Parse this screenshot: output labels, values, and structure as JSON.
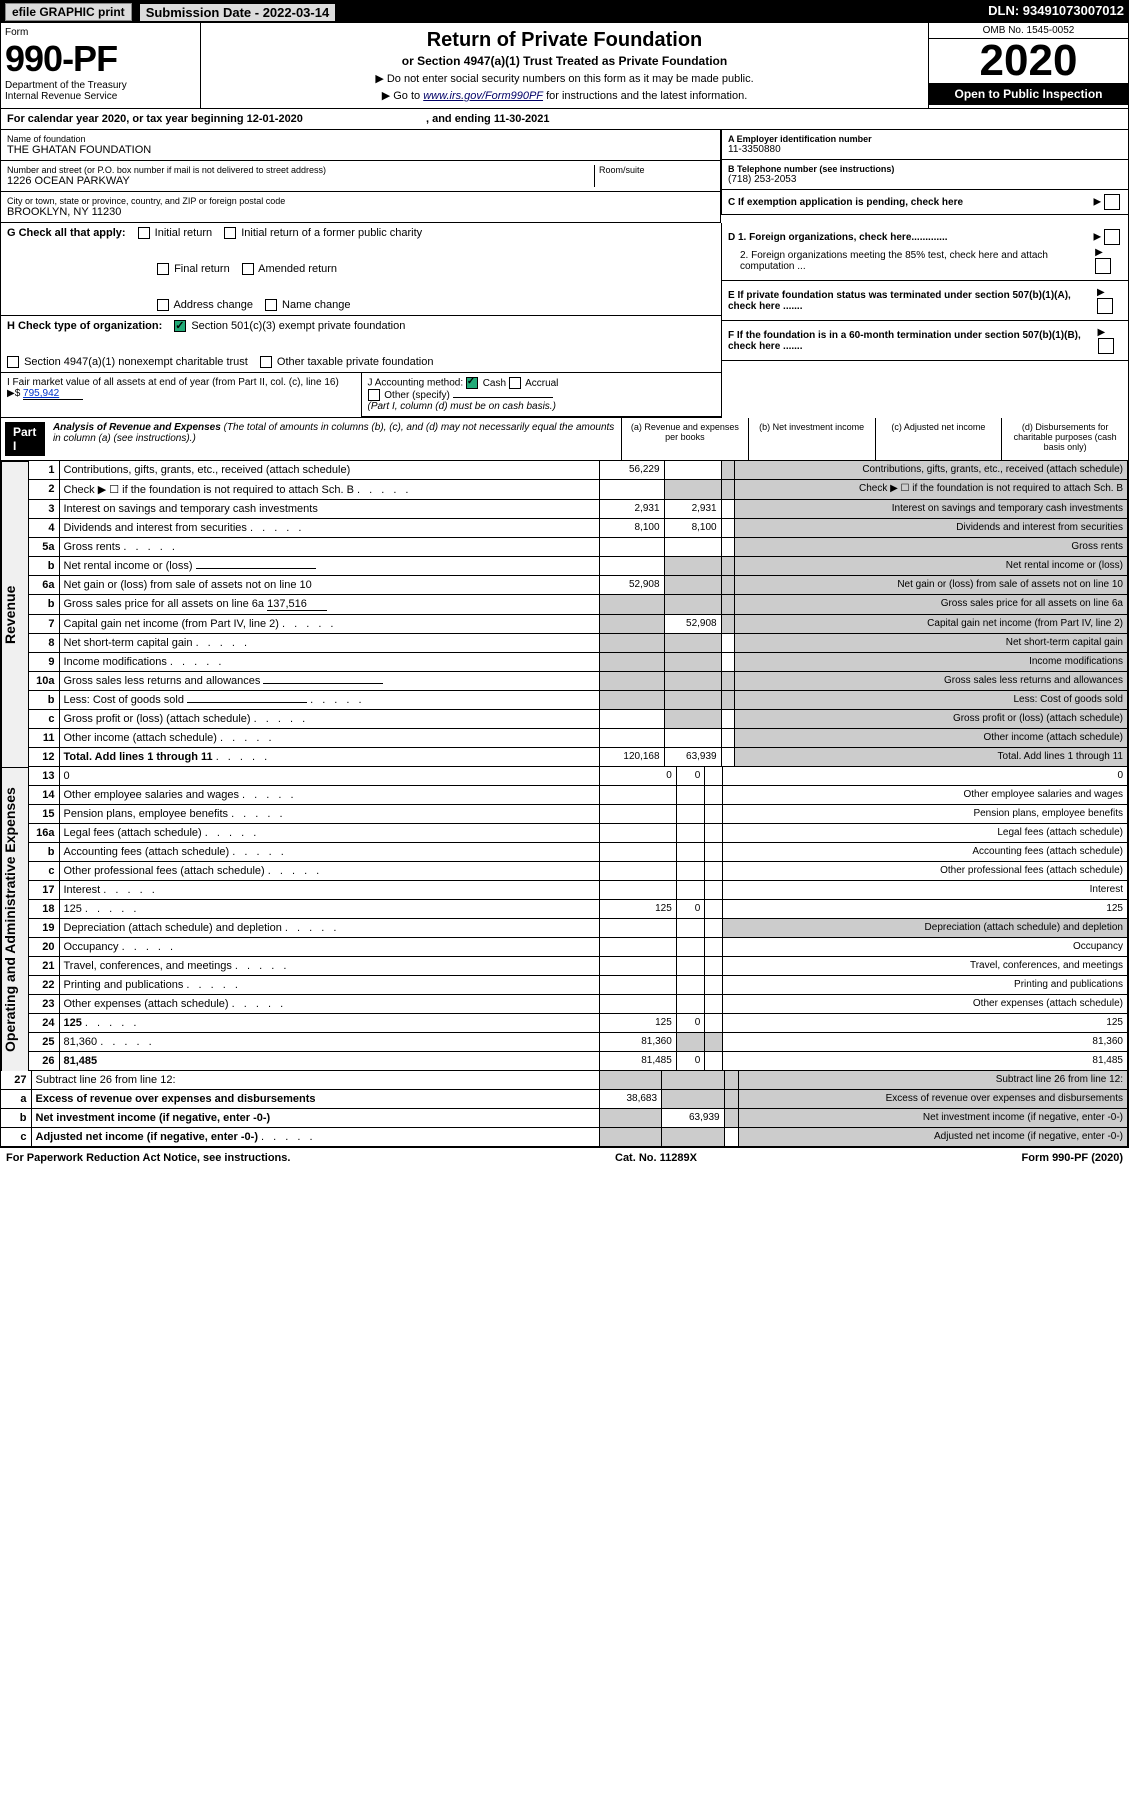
{
  "top_bar": {
    "efile": "efile GRAPHIC print",
    "sub_label": "Submission Date - 2022-03-14",
    "dln": "DLN: 93491073007012"
  },
  "header": {
    "form_label": "Form",
    "form_num": "990-PF",
    "dept": "Department of the Treasury",
    "irs": "Internal Revenue Service",
    "title": "Return of Private Foundation",
    "subtitle": "or Section 4947(a)(1) Trust Treated as Private Foundation",
    "note1": "▶ Do not enter social security numbers on this form as it may be made public.",
    "note2_pre": "▶ Go to ",
    "note2_link": "www.irs.gov/Form990PF",
    "note2_post": " for instructions and the latest information.",
    "omb": "OMB No. 1545-0052",
    "year": "2020",
    "open": "Open to Public Inspection"
  },
  "cal_year": {
    "text": "For calendar year 2020, or tax year beginning 12-01-2020",
    "ending": ", and ending 11-30-2021"
  },
  "foundation": {
    "name_label": "Name of foundation",
    "name": "THE GHATAN FOUNDATION",
    "addr_label": "Number and street (or P.O. box number if mail is not delivered to street address)",
    "addr": "1226 OCEAN PARKWAY",
    "room_label": "Room/suite",
    "city_label": "City or town, state or province, country, and ZIP or foreign postal code",
    "city": "BROOKLYN, NY  11230",
    "ein_label": "A Employer identification number",
    "ein": "11-3350880",
    "tel_label": "B Telephone number (see instructions)",
    "tel": "(718) 253-2053",
    "c_label": "C If exemption application is pending, check here"
  },
  "checks": {
    "g_label": "G Check all that apply:",
    "g_opts": [
      "Initial return",
      "Initial return of a former public charity",
      "Final return",
      "Amended return",
      "Address change",
      "Name change"
    ],
    "h_label": "H Check type of organization:",
    "h1": "Section 501(c)(3) exempt private foundation",
    "h2": "Section 4947(a)(1) nonexempt charitable trust",
    "h3": "Other taxable private foundation",
    "i_label": "I Fair market value of all assets at end of year (from Part II, col. (c), line 16) ▶$",
    "i_val": "795,942",
    "j_label": "J Accounting method:",
    "j_opts": [
      "Cash",
      "Accrual",
      "Other (specify)"
    ],
    "j_note": "(Part I, column (d) must be on cash basis.)",
    "d1": "D 1. Foreign organizations, check here.............",
    "d2": "2. Foreign organizations meeting the 85% test, check here and attach computation ...",
    "e": "E  If private foundation status was terminated under section 507(b)(1)(A), check here .......",
    "f": "F  If the foundation is in a 60-month termination under section 507(b)(1)(B), check here .......",
    "arrow": "▶"
  },
  "part1": {
    "label": "Part I",
    "title": "Analysis of Revenue and Expenses",
    "note": "(The total of amounts in columns (b), (c), and (d) may not necessarily equal the amounts in column (a) (see instructions).)",
    "col_a": "(a) Revenue and expenses per books",
    "col_b": "(b) Net investment income",
    "col_c": "(c) Adjusted net income",
    "col_d": "(d) Disbursements for charitable purposes (cash basis only)"
  },
  "side_labels": {
    "revenue": "Revenue",
    "expenses": "Operating and Administrative Expenses"
  },
  "rows": [
    {
      "n": "1",
      "d": "Contributions, gifts, grants, etc., received (attach schedule)",
      "a": "56,229",
      "shade_b": false,
      "shade_c": true,
      "shade_d": true
    },
    {
      "n": "2",
      "d": "Check ▶ ☐ if the foundation is not required to attach Sch. B",
      "shade_b": true,
      "shade_c": true,
      "shade_d": true,
      "dots": true
    },
    {
      "n": "3",
      "d": "Interest on savings and temporary cash investments",
      "a": "2,931",
      "b": "2,931",
      "shade_d": true
    },
    {
      "n": "4",
      "d": "Dividends and interest from securities",
      "a": "8,100",
      "b": "8,100",
      "shade_d": true,
      "dots": true
    },
    {
      "n": "5a",
      "d": "Gross rents",
      "shade_d": true,
      "dots": true
    },
    {
      "n": "b",
      "d": "Net rental income or (loss)",
      "shade_a": false,
      "shade_b": true,
      "shade_c": true,
      "shade_d": true,
      "inline": true
    },
    {
      "n": "6a",
      "d": "Net gain or (loss) from sale of assets not on line 10",
      "a": "52,908",
      "shade_b": true,
      "shade_c": true,
      "shade_d": true
    },
    {
      "n": "b",
      "d": "Gross sales price for all assets on line 6a",
      "inline_val": "137,516",
      "shade_a": true,
      "shade_b": true,
      "shade_c": true,
      "shade_d": true
    },
    {
      "n": "7",
      "d": "Capital gain net income (from Part IV, line 2)",
      "b": "52,908",
      "shade_a": true,
      "shade_c": true,
      "shade_d": true,
      "dots": true
    },
    {
      "n": "8",
      "d": "Net short-term capital gain",
      "shade_a": true,
      "shade_b": true,
      "shade_d": true,
      "dots": true
    },
    {
      "n": "9",
      "d": "Income modifications",
      "shade_a": true,
      "shade_b": true,
      "shade_d": true,
      "dots": true
    },
    {
      "n": "10a",
      "d": "Gross sales less returns and allowances",
      "shade_a": true,
      "shade_b": true,
      "shade_c": true,
      "shade_d": true,
      "inline": true
    },
    {
      "n": "b",
      "d": "Less: Cost of goods sold",
      "shade_a": true,
      "shade_b": true,
      "shade_c": true,
      "shade_d": true,
      "inline": true,
      "dots": true
    },
    {
      "n": "c",
      "d": "Gross profit or (loss) (attach schedule)",
      "shade_b": true,
      "shade_d": true,
      "dots": true
    },
    {
      "n": "11",
      "d": "Other income (attach schedule)",
      "shade_d": true,
      "dots": true
    },
    {
      "n": "12",
      "d": "Total. Add lines 1 through 11",
      "a": "120,168",
      "b": "63,939",
      "bold": true,
      "shade_d": true,
      "dots": true
    }
  ],
  "exp_rows": [
    {
      "n": "13",
      "d": "0",
      "a": "0",
      "b": "0"
    },
    {
      "n": "14",
      "d": "Other employee salaries and wages",
      "dots": true
    },
    {
      "n": "15",
      "d": "Pension plans, employee benefits",
      "dots": true
    },
    {
      "n": "16a",
      "d": "Legal fees (attach schedule)",
      "dots": true
    },
    {
      "n": "b",
      "d": "Accounting fees (attach schedule)",
      "dots": true
    },
    {
      "n": "c",
      "d": "Other professional fees (attach schedule)",
      "dots": true
    },
    {
      "n": "17",
      "d": "Interest",
      "dots": true
    },
    {
      "n": "18",
      "d": "125",
      "a": "125",
      "b": "0",
      "dots": true
    },
    {
      "n": "19",
      "d": "Depreciation (attach schedule) and depletion",
      "shade_d": true,
      "dots": true
    },
    {
      "n": "20",
      "d": "Occupancy",
      "dots": true
    },
    {
      "n": "21",
      "d": "Travel, conferences, and meetings",
      "dots": true
    },
    {
      "n": "22",
      "d": "Printing and publications",
      "dots": true
    },
    {
      "n": "23",
      "d": "Other expenses (attach schedule)",
      "dots": true
    },
    {
      "n": "24",
      "d": "125",
      "a": "125",
      "b": "0",
      "bold": true,
      "dots": true
    },
    {
      "n": "25",
      "d": "81,360",
      "a": "81,360",
      "shade_b": true,
      "shade_c": true,
      "dots": true
    },
    {
      "n": "26",
      "d": "81,485",
      "a": "81,485",
      "b": "0",
      "bold": true
    }
  ],
  "line27": [
    {
      "n": "27",
      "d": "Subtract line 26 from line 12:",
      "shade_a": true,
      "shade_b": true,
      "shade_c": true,
      "shade_d": true
    },
    {
      "n": "a",
      "d": "Excess of revenue over expenses and disbursements",
      "a": "38,683",
      "bold": true,
      "shade_b": true,
      "shade_c": true,
      "shade_d": true
    },
    {
      "n": "b",
      "d": "Net investment income (if negative, enter -0-)",
      "b": "63,939",
      "bold": true,
      "shade_a": true,
      "shade_c": true,
      "shade_d": true
    },
    {
      "n": "c",
      "d": "Adjusted net income (if negative, enter -0-)",
      "bold": true,
      "shade_a": true,
      "shade_b": true,
      "shade_d": true,
      "dots": true
    }
  ],
  "footer": {
    "left": "For Paperwork Reduction Act Notice, see instructions.",
    "mid": "Cat. No. 11289X",
    "right": "Form 990-PF (2020)"
  }
}
